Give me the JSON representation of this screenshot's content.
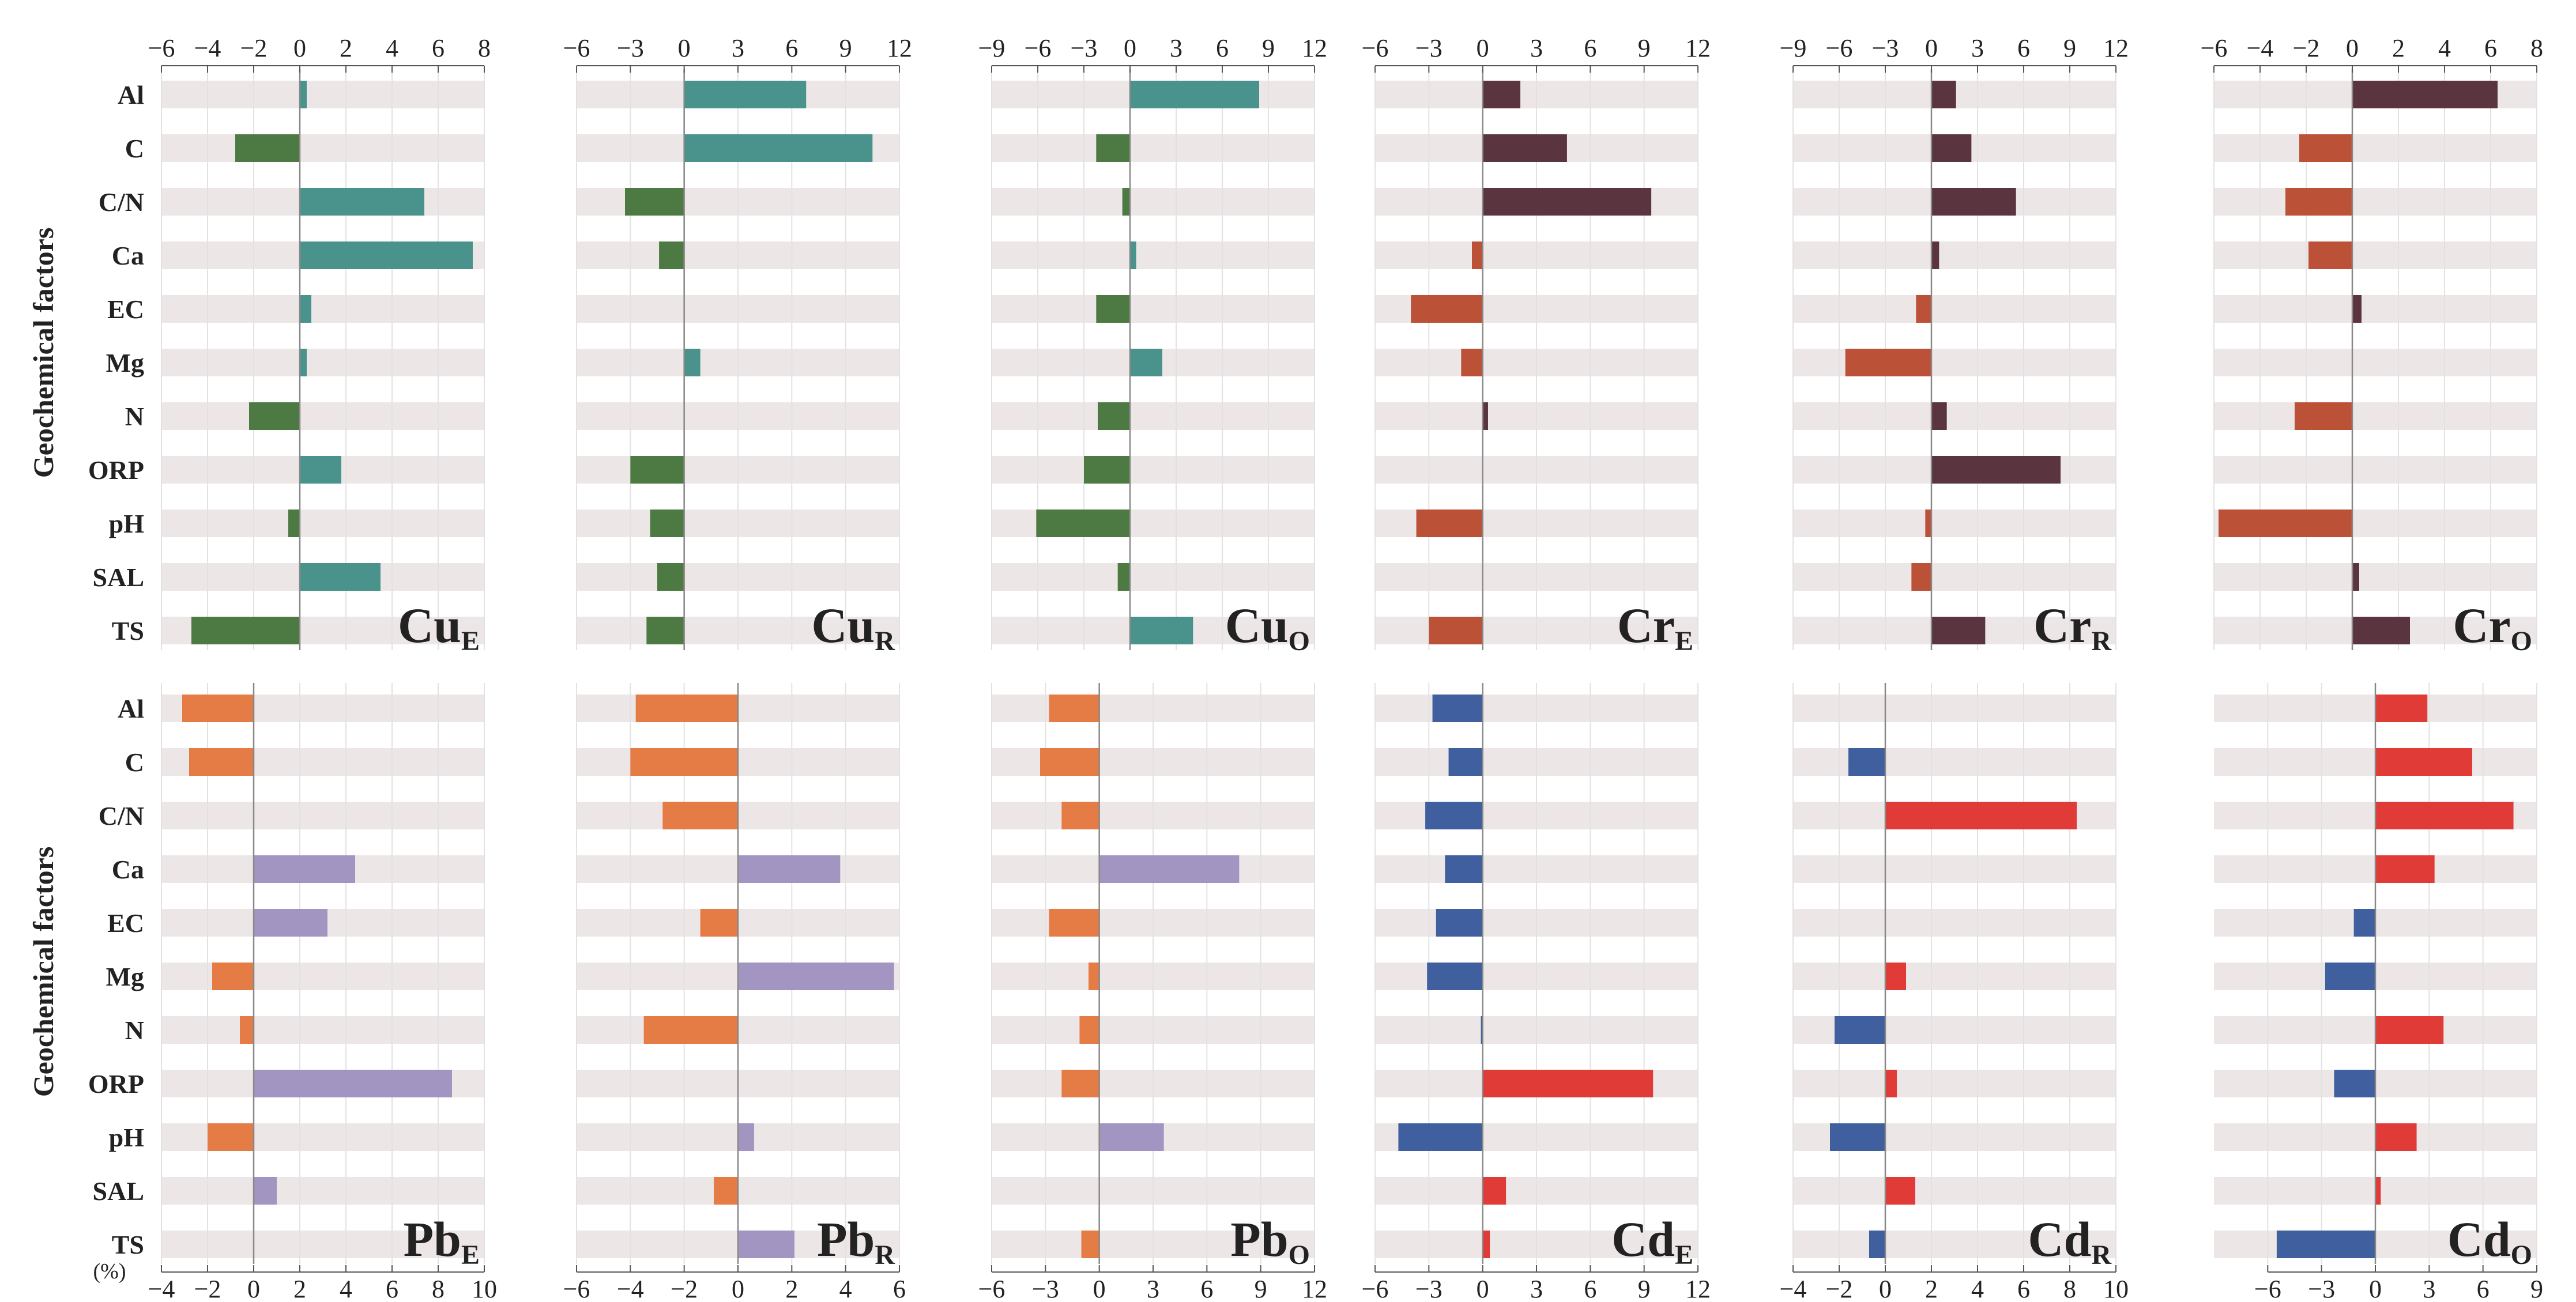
{
  "y_axis_label": "Geochemical factors",
  "unit_label": "(%)",
  "categories": [
    "Al",
    "C",
    "C/N",
    "Ca",
    "EC",
    "Mg",
    "N",
    "ORP",
    "pH",
    "SAL",
    "TS"
  ],
  "chart_data": [
    {
      "type": "bar",
      "title": "Cu",
      "subscript": "E",
      "row": 0,
      "col": 0,
      "tick_pos": "top",
      "xlim": [
        -6,
        8
      ],
      "ticks": [
        -6,
        -4,
        -2,
        0,
        2,
        4,
        6,
        8
      ],
      "tick_labels": [
        "−6",
        "−4",
        "−2",
        "0",
        "2",
        "4",
        "6",
        "8"
      ],
      "values": [
        0.3,
        -2.8,
        5.4,
        7.5,
        0.5,
        0.3,
        -2.2,
        1.8,
        -0.5,
        3.5,
        -4.7
      ],
      "pos_color": "#4a938c",
      "neg_color": "#4d7a42"
    },
    {
      "type": "bar",
      "title": "Cu",
      "subscript": "R",
      "row": 0,
      "col": 1,
      "tick_pos": "top",
      "xlim": [
        -6,
        12
      ],
      "ticks": [
        -6,
        -3,
        0,
        3,
        6,
        9,
        12
      ],
      "tick_labels": [
        "−6",
        "−3",
        "0",
        "3",
        "6",
        "9",
        "12"
      ],
      "values": [
        6.8,
        10.5,
        -3.3,
        -1.4,
        0,
        0.9,
        0,
        -3.0,
        -1.9,
        -1.5,
        -2.1
      ],
      "pos_color": "#4a938c",
      "neg_color": "#4d7a42"
    },
    {
      "type": "bar",
      "title": "Cu",
      "subscript": "O",
      "row": 0,
      "col": 2,
      "tick_pos": "top",
      "xlim": [
        -9,
        12
      ],
      "ticks": [
        -9,
        -6,
        -3,
        0,
        3,
        6,
        9,
        12
      ],
      "tick_labels": [
        "−9",
        "−6",
        "−3",
        "0",
        "3",
        "6",
        "9",
        "12"
      ],
      "values": [
        8.4,
        -2.2,
        -0.5,
        0.4,
        -2.2,
        2.1,
        -2.1,
        -3.0,
        -6.1,
        -0.8,
        4.1
      ],
      "pos_color": "#4a938c",
      "neg_color": "#4d7a42"
    },
    {
      "type": "bar",
      "title": "Cr",
      "subscript": "E",
      "row": 0,
      "col": 3,
      "tick_pos": "top",
      "xlim": [
        -6,
        12
      ],
      "ticks": [
        -6,
        -3,
        0,
        3,
        6,
        9,
        12
      ],
      "tick_labels": [
        "−6",
        "−3",
        "0",
        "3",
        "6",
        "9",
        "12"
      ],
      "values": [
        2.1,
        4.7,
        9.4,
        -0.6,
        -4.0,
        -1.2,
        0.3,
        0,
        -3.7,
        0,
        -3.0
      ],
      "pos_color": "#5a3540",
      "neg_color": "#bb5237"
    },
    {
      "type": "bar",
      "title": "Cr",
      "subscript": "R",
      "row": 0,
      "col": 4,
      "tick_pos": "top",
      "xlim": [
        -9,
        12
      ],
      "ticks": [
        -9,
        -6,
        -3,
        0,
        3,
        6,
        9,
        12
      ],
      "tick_labels": [
        "−9",
        "−6",
        "−3",
        "0",
        "3",
        "6",
        "9",
        "12"
      ],
      "values": [
        1.6,
        2.6,
        5.5,
        0.5,
        -1.0,
        -5.6,
        1.0,
        8.4,
        -0.4,
        -1.3,
        3.5
      ],
      "pos_color": "#5a3540",
      "neg_color": "#bb5237"
    },
    {
      "type": "bar",
      "title": "Cr",
      "subscript": "O",
      "row": 0,
      "col": 5,
      "tick_pos": "top",
      "xlim": [
        -6,
        8
      ],
      "ticks": [
        -6,
        -4,
        -2,
        0,
        2,
        4,
        6,
        8
      ],
      "tick_labels": [
        "−6",
        "−4",
        "−2",
        "0",
        "2",
        "4",
        "6",
        "8"
      ],
      "values": [
        6.3,
        -2.3,
        -2.9,
        -1.9,
        0.4,
        0,
        -2.5,
        0,
        -5.8,
        0.3,
        2.5
      ],
      "pos_color": "#5a3540",
      "neg_color": "#bb5237"
    },
    {
      "type": "bar",
      "title": "Pb",
      "subscript": "E",
      "row": 1,
      "col": 0,
      "tick_pos": "bottom",
      "xlim": [
        -4,
        10
      ],
      "ticks": [
        -4,
        -2,
        0,
        2,
        4,
        6,
        8,
        10
      ],
      "tick_labels": [
        "−4",
        "−2",
        "0",
        "2",
        "4",
        "6",
        "8",
        "10"
      ],
      "values": [
        -3.1,
        -2.8,
        0,
        4.4,
        3.2,
        -1.8,
        -0.6,
        8.6,
        -2.0,
        1.0,
        0
      ],
      "pos_color": "#a295c2",
      "neg_color": "#e57c45"
    },
    {
      "type": "bar",
      "title": "Pb",
      "subscript": "R",
      "row": 1,
      "col": 1,
      "tick_pos": "bottom",
      "xlim": [
        -6,
        6
      ],
      "ticks": [
        -6,
        -4,
        -2,
        0,
        2,
        4,
        6
      ],
      "tick_labels": [
        "−6",
        "−4",
        "−2",
        "0",
        "2",
        "4",
        "6"
      ],
      "values": [
        -3.8,
        -4.0,
        -2.8,
        3.8,
        -1.4,
        5.8,
        -3.5,
        0,
        0.6,
        -0.9,
        2.1
      ],
      "pos_color": "#a295c2",
      "neg_color": "#e57c45"
    },
    {
      "type": "bar",
      "title": "Pb",
      "subscript": "O",
      "row": 1,
      "col": 2,
      "tick_pos": "bottom",
      "xlim": [
        -6,
        12
      ],
      "ticks": [
        -6,
        -3,
        0,
        3,
        6,
        9,
        12
      ],
      "tick_labels": [
        "−6",
        "−3",
        "0",
        "3",
        "6",
        "9",
        "12"
      ],
      "values": [
        -2.8,
        -3.3,
        -2.1,
        7.8,
        -2.8,
        -0.6,
        -1.1,
        -2.1,
        3.6,
        0,
        -1.0
      ],
      "pos_color": "#a295c2",
      "neg_color": "#e57c45"
    },
    {
      "type": "bar",
      "title": "Cd",
      "subscript": "E",
      "row": 1,
      "col": 3,
      "tick_pos": "bottom",
      "xlim": [
        -6,
        12
      ],
      "ticks": [
        -6,
        -3,
        0,
        3,
        6,
        9,
        12
      ],
      "tick_labels": [
        "−6",
        "−3",
        "0",
        "3",
        "6",
        "9",
        "12"
      ],
      "values": [
        -2.8,
        -1.9,
        -3.2,
        -2.1,
        -2.6,
        -3.1,
        -0.1,
        9.5,
        -4.7,
        1.3,
        0.4
      ],
      "pos_color": "#e03b36",
      "neg_color": "#3f5f9e"
    },
    {
      "type": "bar",
      "title": "Cd",
      "subscript": "R",
      "row": 1,
      "col": 4,
      "tick_pos": "bottom",
      "xlim": [
        -4,
        10
      ],
      "ticks": [
        -4,
        -2,
        0,
        2,
        4,
        6,
        8,
        10
      ],
      "tick_labels": [
        "−4",
        "−2",
        "0",
        "2",
        "4",
        "6",
        "8",
        "10"
      ],
      "values": [
        0,
        -1.6,
        8.3,
        0,
        0,
        0.9,
        -2.2,
        0.5,
        -2.4,
        1.3,
        -0.7
      ],
      "pos_color": "#e03b36",
      "neg_color": "#3f5f9e"
    },
    {
      "type": "bar",
      "title": "Cd",
      "subscript": "O",
      "row": 1,
      "col": 5,
      "tick_pos": "bottom",
      "xlim": [
        -9,
        9
      ],
      "ticks": [
        -6,
        -3,
        0,
        3,
        6,
        9
      ],
      "tick_labels": [
        "−6",
        "−3",
        "0",
        "3",
        "6",
        "9"
      ],
      "values": [
        2.9,
        5.4,
        7.7,
        3.3,
        -1.2,
        -2.8,
        3.8,
        -2.3,
        2.3,
        0.3,
        -5.5
      ],
      "pos_color": "#e03b36",
      "neg_color": "#3f5f9e"
    }
  ]
}
